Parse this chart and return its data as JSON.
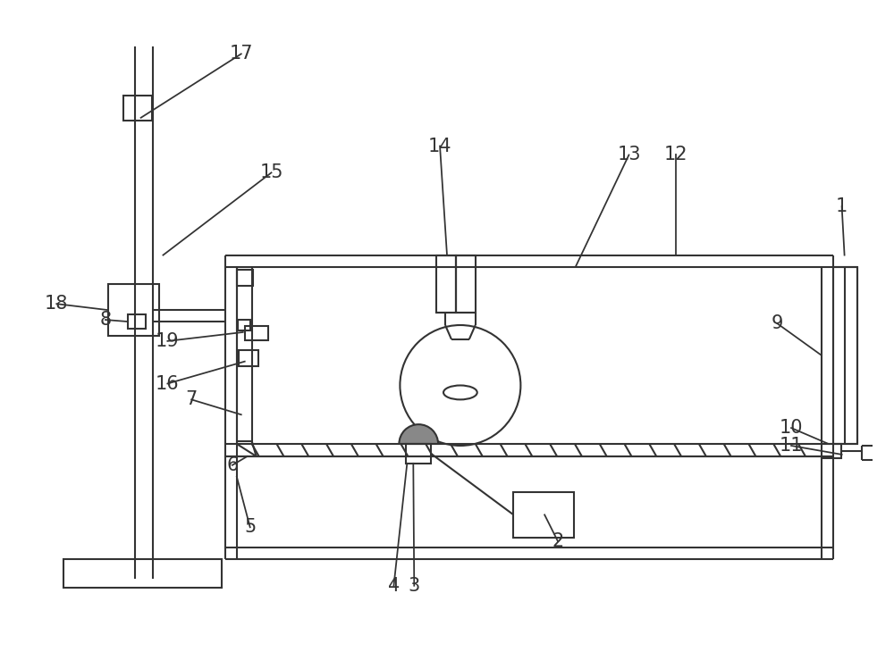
{
  "bg_color": "#ffffff",
  "line_color": "#333333",
  "line_width": 1.5,
  "fig_width": 10.0,
  "fig_height": 7.3
}
